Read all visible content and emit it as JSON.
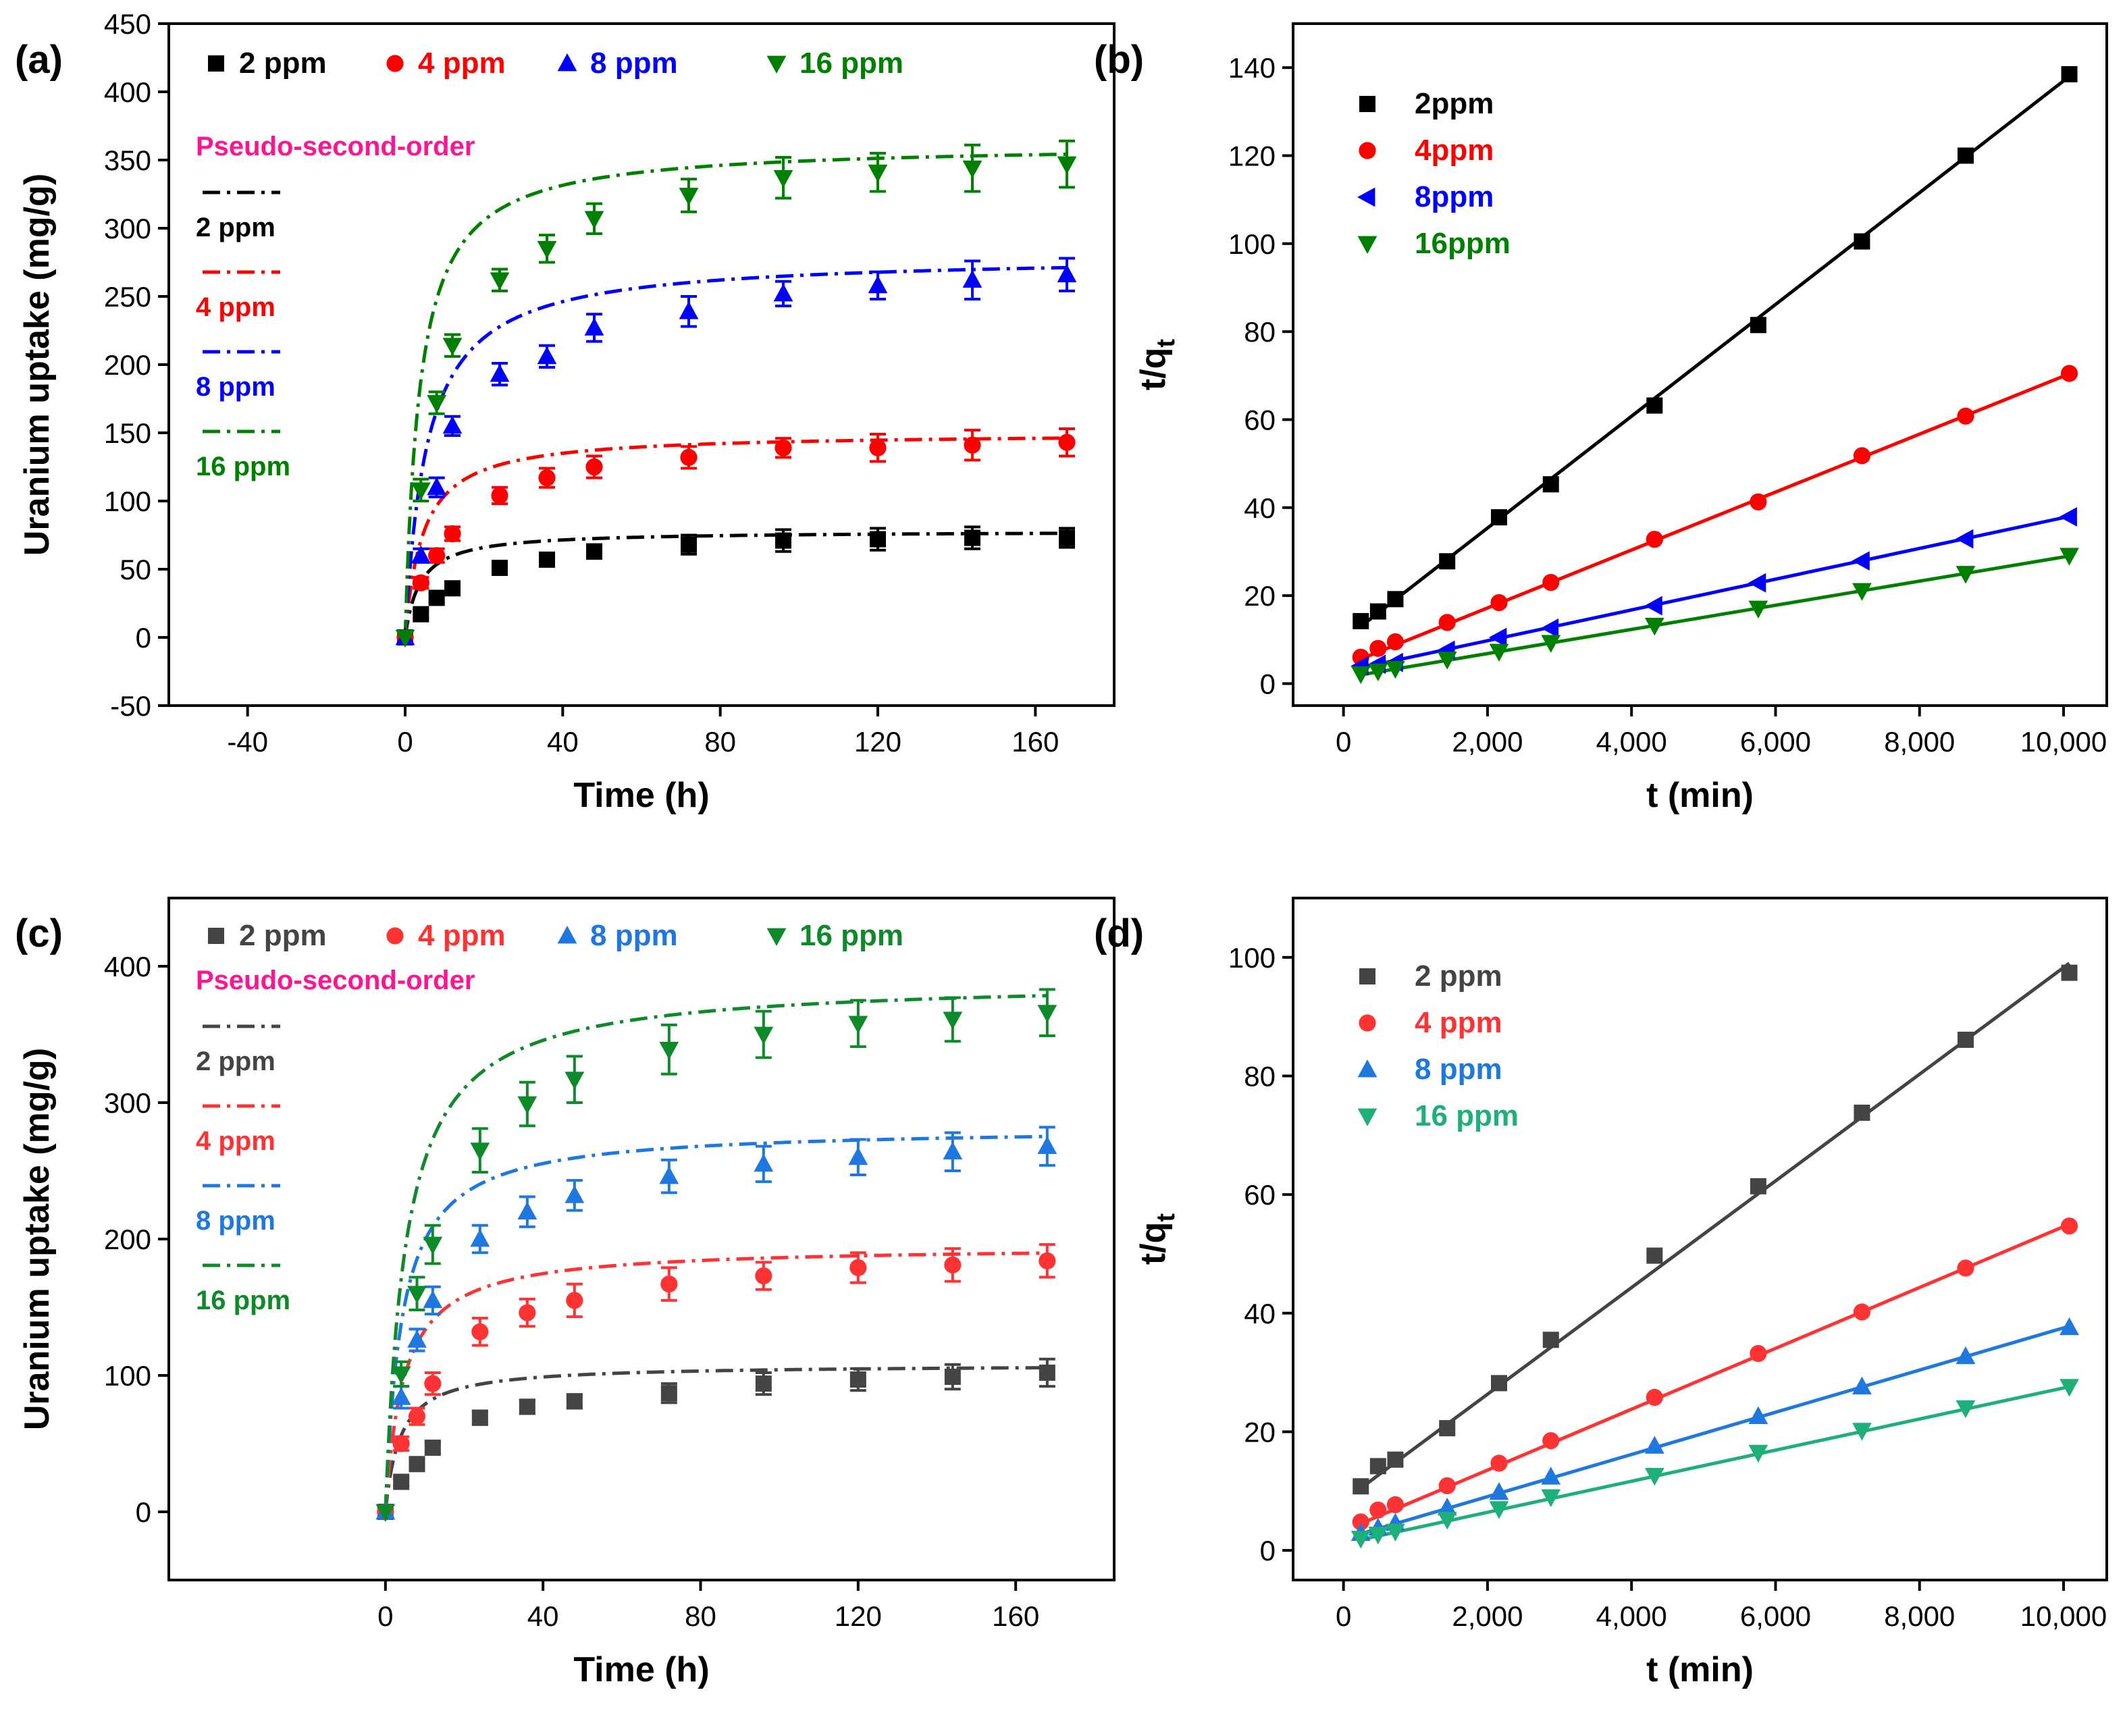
{
  "chart_data": [
    {
      "panel": "(a)",
      "type": "scatter",
      "xlabel": "Time (h)",
      "ylabel": "Uranium uptake (mg/g)",
      "xlim": [
        -60,
        180
      ],
      "ylim": [
        -50,
        450
      ],
      "xticks": [
        -40,
        0,
        40,
        80,
        120,
        160
      ],
      "yticks": [
        -50,
        0,
        50,
        100,
        150,
        200,
        250,
        300,
        350,
        400,
        450
      ],
      "legend_labels": [
        "2 ppm",
        "4 ppm",
        "8 ppm",
        "16 ppm"
      ],
      "fit_title": "Pseudo-second-order",
      "fit_labels": [
        "2 ppm",
        "4 ppm",
        "8 ppm",
        "16 ppm"
      ],
      "series": [
        {
          "name": "2 ppm",
          "color": "#000000",
          "marker": "square",
          "x": [
            0,
            4,
            8,
            12,
            24,
            36,
            48,
            72,
            96,
            120,
            144,
            168
          ],
          "y": [
            0,
            17,
            29,
            36,
            51,
            57,
            63,
            68,
            71,
            72,
            73,
            73
          ],
          "err": [
            0,
            3,
            3,
            4,
            4,
            4,
            5,
            7,
            8,
            8,
            8,
            7
          ]
        },
        {
          "name": "4 ppm",
          "color": "#ff0000",
          "marker": "circle",
          "x": [
            0,
            4,
            8,
            12,
            24,
            36,
            48,
            72,
            96,
            120,
            144,
            168
          ],
          "y": [
            0,
            40,
            60,
            76,
            104,
            117,
            125,
            132,
            139,
            139,
            141,
            143
          ],
          "err": [
            0,
            4,
            5,
            5,
            6,
            7,
            8,
            8,
            7,
            10,
            11,
            10
          ]
        },
        {
          "name": "8 ppm",
          "color": "#0000ff",
          "marker": "triangle-up",
          "x": [
            0,
            4,
            8,
            12,
            24,
            36,
            48,
            72,
            96,
            120,
            144,
            168
          ],
          "y": [
            0,
            60,
            110,
            155,
            193,
            206,
            227,
            239,
            252,
            258,
            262,
            266
          ],
          "err": [
            0,
            5,
            7,
            7,
            8,
            8,
            10,
            11,
            9,
            10,
            14,
            12
          ]
        },
        {
          "name": "16 ppm",
          "color": "#008000",
          "marker": "triangle-down",
          "x": [
            0,
            4,
            8,
            12,
            24,
            36,
            48,
            72,
            96,
            120,
            144,
            168
          ],
          "y": [
            0,
            108,
            172,
            214,
            262,
            285,
            307,
            324,
            337,
            341,
            344,
            347
          ],
          "err": [
            0,
            8,
            8,
            8,
            8,
            10,
            11,
            12,
            15,
            14,
            17,
            17
          ]
        }
      ],
      "fits": [
        {
          "name": "2 ppm",
          "qe": 78,
          "k": 0.0035
        },
        {
          "name": "4 ppm",
          "qe": 150,
          "k": 0.0015
        },
        {
          "name": "8 ppm",
          "qe": 280,
          "k": 0.00065
        },
        {
          "name": "16 ppm",
          "qe": 362,
          "k": 0.00075
        }
      ]
    },
    {
      "panel": "(b)",
      "type": "scatter",
      "xlabel": "t (min)",
      "ylabel": "t/q",
      "ylabel_sub": "t",
      "xlim": [
        -700,
        10600
      ],
      "ylim": [
        -5,
        150
      ],
      "xticks": [
        0,
        2000,
        4000,
        6000,
        8000,
        10000
      ],
      "xtick_labels": [
        "0",
        "2,000",
        "4,000",
        "6,000",
        "8,000",
        "10,000"
      ],
      "yticks": [
        0,
        20,
        40,
        60,
        80,
        100,
        120,
        140
      ],
      "legend_labels": [
        "2ppm",
        "4ppm",
        "8ppm",
        "16ppm"
      ],
      "series": [
        {
          "name": "2ppm",
          "color": "#000000",
          "marker": "square",
          "x": [
            240,
            480,
            720,
            1440,
            2160,
            2880,
            4320,
            5760,
            7200,
            8640,
            10080
          ],
          "y": [
            14.2,
            16.4,
            19.2,
            27.8,
            37.8,
            45.3,
            63.2,
            81.5,
            100.5,
            120.0,
            138.5
          ]
        },
        {
          "name": "4ppm",
          "color": "#ff0000",
          "marker": "circle",
          "x": [
            240,
            480,
            720,
            1440,
            2160,
            2880,
            4320,
            5760,
            7200,
            8640,
            10080
          ],
          "y": [
            6.0,
            8.0,
            9.5,
            13.9,
            18.4,
            23.0,
            32.8,
            41.3,
            51.8,
            60.8,
            70.5
          ]
        },
        {
          "name": "8ppm",
          "color": "#0000ff",
          "marker": "triangle-left",
          "x": [
            240,
            480,
            720,
            1440,
            2160,
            2880,
            4320,
            5760,
            7200,
            8640,
            10080
          ],
          "y": [
            4.0,
            4.4,
            4.8,
            7.6,
            10.5,
            12.6,
            17.7,
            22.9,
            27.9,
            32.9,
            37.9
          ]
        },
        {
          "name": "16ppm",
          "color": "#008000",
          "marker": "triangle-down",
          "x": [
            240,
            480,
            720,
            1440,
            2160,
            2880,
            4320,
            5760,
            7200,
            8640,
            10080
          ],
          "y": [
            2.2,
            2.8,
            3.4,
            5.5,
            7.3,
            9.3,
            13.2,
            17.1,
            21.1,
            25.0,
            29.1
          ]
        }
      ],
      "fits": [
        {
          "name": "2ppm",
          "x": [
            240,
            10080
          ],
          "y": [
            13.0,
            138.0
          ]
        },
        {
          "name": "4ppm",
          "x": [
            240,
            10080
          ],
          "y": [
            5.6,
            70.4
          ]
        },
        {
          "name": "8ppm",
          "x": [
            240,
            10080
          ],
          "y": [
            3.6,
            38.0
          ]
        },
        {
          "name": "16ppm",
          "x": [
            240,
            10080
          ],
          "y": [
            2.0,
            29.0
          ]
        }
      ]
    },
    {
      "panel": "(c)",
      "type": "scatter",
      "xlabel": "Time (h)",
      "ylabel": "Uranium uptake (mg/g)",
      "xlim": [
        -55,
        185
      ],
      "ylim": [
        -50,
        450
      ],
      "xticks": [
        0,
        40,
        80,
        120,
        160
      ],
      "yticks": [
        0,
        100,
        200,
        300,
        400
      ],
      "legend_labels": [
        "2 ppm",
        "4 ppm",
        "8 ppm",
        "16 ppm"
      ],
      "fit_title": "Pseudo-second-order",
      "fit_labels": [
        "2 ppm",
        "4 ppm",
        "8 ppm",
        "16 ppm"
      ],
      "series": [
        {
          "name": "2 ppm",
          "color": "#444444",
          "marker": "square",
          "x": [
            0,
            4,
            8,
            12,
            24,
            36,
            48,
            72,
            96,
            120,
            144,
            168
          ],
          "y": [
            0,
            22,
            35,
            47,
            69,
            77,
            81,
            87,
            94,
            97,
            99,
            102
          ],
          "err": [
            0,
            3,
            4,
            4,
            5,
            5,
            5,
            7,
            8,
            8,
            9,
            10
          ]
        },
        {
          "name": "4 ppm",
          "color": "#ff3333",
          "marker": "circle",
          "x": [
            0,
            4,
            8,
            12,
            24,
            36,
            48,
            72,
            96,
            120,
            144,
            168
          ],
          "y": [
            0,
            50,
            70,
            94,
            132,
            146,
            155,
            167,
            173,
            179,
            181,
            184
          ],
          "err": [
            0,
            5,
            6,
            8,
            10,
            10,
            12,
            12,
            10,
            11,
            12,
            12
          ]
        },
        {
          "name": "8 ppm",
          "color": "#1e78e0",
          "marker": "triangle-up",
          "x": [
            0,
            4,
            8,
            12,
            24,
            36,
            48,
            72,
            96,
            120,
            144,
            168
          ],
          "y": [
            0,
            84,
            126,
            155,
            200,
            220,
            232,
            246,
            255,
            260,
            264,
            268
          ],
          "err": [
            0,
            8,
            8,
            10,
            10,
            11,
            11,
            12,
            13,
            13,
            14,
            14
          ]
        },
        {
          "name": "16 ppm",
          "color": "#0e8a2a",
          "marker": "triangle-down",
          "x": [
            0,
            4,
            8,
            12,
            24,
            36,
            48,
            72,
            96,
            120,
            144,
            168
          ],
          "y": [
            0,
            101,
            160,
            196,
            265,
            299,
            317,
            339,
            350,
            358,
            361,
            366
          ],
          "err": [
            0,
            9,
            12,
            14,
            16,
            16,
            17,
            18,
            17,
            17,
            16,
            17
          ]
        }
      ],
      "fits": [
        {
          "name": "2 ppm",
          "qe": 108,
          "k": 0.0025
        },
        {
          "name": "4 ppm",
          "qe": 195,
          "k": 0.0011
        },
        {
          "name": "8 ppm",
          "qe": 282,
          "k": 0.00085
        },
        {
          "name": "16 ppm",
          "qe": 390,
          "k": 0.0005
        }
      ]
    },
    {
      "panel": "(d)",
      "type": "scatter",
      "xlabel": "t (min)",
      "ylabel": "t/q",
      "ylabel_sub": "t",
      "xlim": [
        -700,
        10600
      ],
      "ylim": [
        -5,
        110
      ],
      "xticks": [
        0,
        2000,
        4000,
        6000,
        8000,
        10000
      ],
      "xtick_labels": [
        "0",
        "2,000",
        "4,000",
        "6,000",
        "8,000",
        "10,000"
      ],
      "yticks": [
        0,
        20,
        40,
        60,
        80,
        100
      ],
      "legend_labels": [
        "2 ppm",
        "4 ppm",
        "8 ppm",
        "16 ppm"
      ],
      "series": [
        {
          "name": "2 ppm",
          "color": "#444444",
          "marker": "square",
          "x": [
            240,
            480,
            720,
            1440,
            2160,
            2880,
            4320,
            5760,
            7200,
            8640,
            10080
          ],
          "y": [
            10.8,
            14.2,
            15.3,
            20.6,
            28.2,
            35.5,
            49.7,
            61.4,
            73.8,
            86.1,
            97.4
          ]
        },
        {
          "name": "4 ppm",
          "color": "#ff3333",
          "marker": "circle",
          "x": [
            240,
            480,
            720,
            1440,
            2160,
            2880,
            4320,
            5760,
            7200,
            8640,
            10080
          ],
          "y": [
            4.8,
            6.8,
            7.7,
            10.9,
            14.7,
            18.5,
            25.8,
            33.2,
            40.2,
            47.6,
            54.7
          ]
        },
        {
          "name": "8 ppm",
          "color": "#1e78e0",
          "marker": "triangle-up",
          "x": [
            240,
            480,
            720,
            1440,
            2160,
            2880,
            4320,
            5760,
            7200,
            8640,
            10080
          ],
          "y": [
            2.9,
            3.8,
            4.6,
            7.2,
            9.8,
            12.4,
            17.6,
            22.6,
            27.6,
            32.7,
            37.6
          ]
        },
        {
          "name": "16 ppm",
          "color": "#1fb07a",
          "marker": "triangle-down",
          "x": [
            240,
            480,
            720,
            1440,
            2160,
            2880,
            4320,
            5760,
            7200,
            8640,
            10080
          ],
          "y": [
            2.0,
            2.7,
            3.2,
            5.2,
            7.0,
            9.0,
            12.6,
            16.5,
            20.2,
            24.0,
            27.6
          ]
        }
      ],
      "fits": [
        {
          "name": "2 ppm",
          "x": [
            240,
            10080
          ],
          "y": [
            10.5,
            99.0
          ]
        },
        {
          "name": "4 ppm",
          "x": [
            240,
            10080
          ],
          "y": [
            4.5,
            55.0
          ]
        },
        {
          "name": "8 ppm",
          "x": [
            240,
            10080
          ],
          "y": [
            2.8,
            37.8
          ]
        },
        {
          "name": "16 ppm",
          "x": [
            240,
            10080
          ],
          "y": [
            1.8,
            27.6
          ]
        }
      ]
    }
  ]
}
